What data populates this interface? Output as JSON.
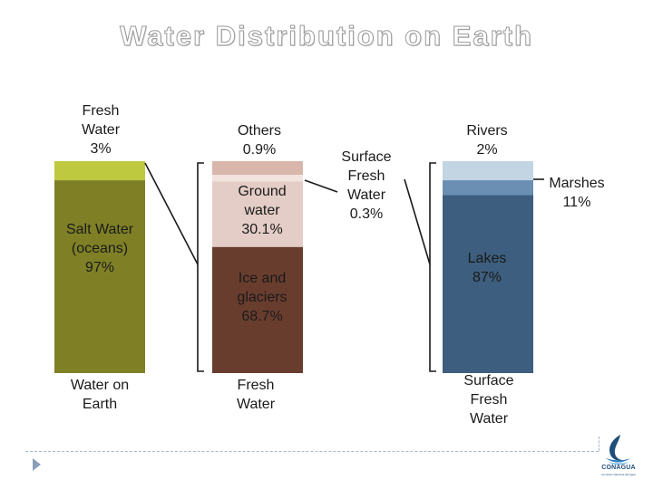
{
  "title": "Water Distribution on Earth",
  "footer": {
    "logo_text": "CONAGUA",
    "logo_subtext": "Comisión Nacional del Agua"
  },
  "chart_data": {
    "type": "stacked-bar",
    "title": "Water Distribution on Earth",
    "bars": [
      {
        "name": "Water on Earth",
        "label_lines": [
          "Water on",
          "Earth"
        ],
        "segments": [
          {
            "name": "Fresh Water",
            "label_lines": [
              "Fresh",
              "Water",
              "3%"
            ],
            "value": 3,
            "color": "#bfc940"
          },
          {
            "name": "Salt Water (oceans)",
            "label_lines": [
              "Salt Water",
              "(oceans)",
              "97%"
            ],
            "value": 97,
            "color": "#7f8026"
          }
        ]
      },
      {
        "name": "Fresh Water",
        "label_lines": [
          "Fresh",
          "Water"
        ],
        "segments": [
          {
            "name": "Others",
            "label_lines": [
              "Others",
              "0.9%"
            ],
            "value": 0.9,
            "color": "#d8b6ac"
          },
          {
            "name": "Surface Fresh Water",
            "label_lines": [
              "Surface",
              "Fresh",
              "Water",
              "0.3%"
            ],
            "value": 0.3,
            "color": "#f3e3df"
          },
          {
            "name": "Ground water",
            "label_lines": [
              "Ground",
              "water",
              "30.1%"
            ],
            "value": 30.1,
            "color": "#e4cdc6"
          },
          {
            "name": "Ice and glaciers",
            "label_lines": [
              "Ice and",
              "glaciers",
              "68.7%"
            ],
            "value": 68.7,
            "color": "#693d2e"
          }
        ]
      },
      {
        "name": "Surface Fresh Water",
        "label_lines": [
          "Surface",
          "Fresh",
          "Water"
        ],
        "segments": [
          {
            "name": "Rivers",
            "label_lines": [
              "Rivers",
              "2%"
            ],
            "value": 2,
            "color": "#c3d4e2"
          },
          {
            "name": "Marshes",
            "label_lines": [
              "Marshes",
              "11%"
            ],
            "value": 11,
            "color": "#6b8fb3"
          },
          {
            "name": "Lakes",
            "label_lines": [
              "Lakes",
              "87%"
            ],
            "value": 87,
            "color": "#3d5e7e"
          }
        ]
      }
    ]
  }
}
